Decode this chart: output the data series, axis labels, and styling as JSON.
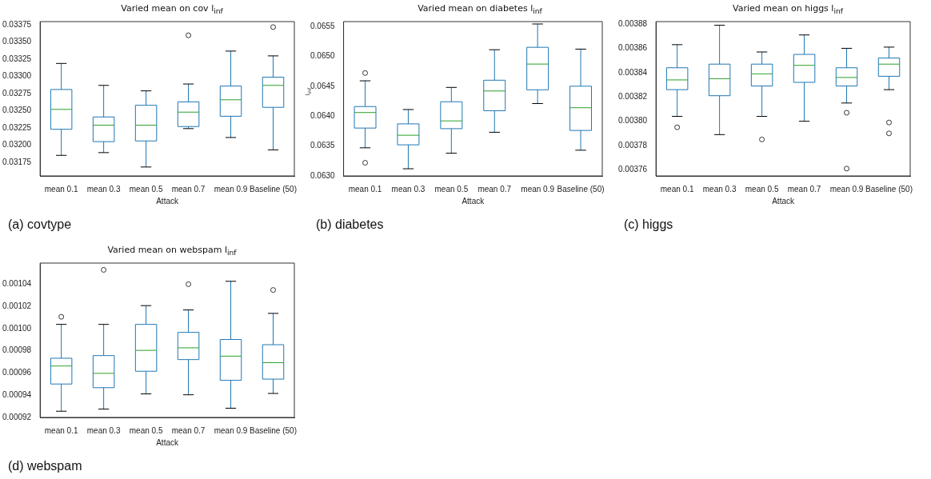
{
  "chart_data": [
    {
      "type": "box",
      "title": "Varied mean on cov l$_{inf}$",
      "xlabel": "Attack",
      "color": "#1f77b4",
      "categories": [
        "mean 0.1",
        "mean 0.3",
        "mean 0.5",
        "mean 0.7",
        "mean 0.9",
        "Baseline (50)"
      ],
      "boxes": [
        {
          "low": 0.03185,
          "q1": 0.03223,
          "median": 0.03252,
          "q3": 0.03281,
          "high": 0.03319
        },
        {
          "low": 0.03189,
          "q1": 0.03205,
          "median": 0.03229,
          "q3": 0.03241,
          "high": 0.03287
        },
        {
          "low": 0.03168,
          "q1": 0.03206,
          "median": 0.03229,
          "q3": 0.03258,
          "high": 0.03279
        },
        {
          "low": 0.03224,
          "q1": 0.03227,
          "median": 0.03248,
          "q3": 0.03263,
          "high": 0.03289,
          "outliers": [
            0.0336
          ]
        },
        {
          "low": 0.03211,
          "q1": 0.03242,
          "median": 0.03266,
          "q3": 0.03286,
          "high": 0.03337
        },
        {
          "low": 0.03193,
          "q1": 0.03255,
          "median": 0.03287,
          "q3": 0.03299,
          "high": 0.0333,
          "outliers": [
            0.03372
          ]
        }
      ],
      "ylim": [
        0.03155,
        0.0338
      ],
      "yticks": [
        0.03175,
        {
          "value": 0.032,
          "label": "0.03200"
        },
        0.03225,
        {
          "value": 0.0325,
          "label": "0.03250"
        },
        0.03275,
        {
          "value": 0.033,
          "label": "0.03300"
        },
        0.03325,
        {
          "value": 0.0335,
          "label": "0.03350"
        },
        0.03375
      ],
      "grid": false,
      "legend": false,
      "annotations": [
        "(a) covtype"
      ]
    },
    {
      "type": "box",
      "title": "Varied mean on diabetes l$_{inf}$",
      "xlabel": "Attack",
      "ylabel": "l$_{inf}$",
      "color": "#1f77b4",
      "categories": [
        "mean 0.1",
        "mean 0.3",
        "mean 0.5",
        "mean 0.7",
        "mean 0.9",
        "Baseline (50)"
      ],
      "boxes": [
        {
          "low": 0.06347,
          "q1": 0.0638,
          "median": 0.06406,
          "q3": 0.06416,
          "high": 0.06459,
          "outliers": [
            0.06472,
            0.06322
          ]
        },
        {
          "low": 0.06312,
          "q1": 0.06352,
          "median": 0.06368,
          "q3": 0.06387,
          "high": 0.06411
        },
        {
          "low": 0.06338,
          "q1": 0.06379,
          "median": 0.06392,
          "q3": 0.06424,
          "high": 0.06448
        },
        {
          "low": 0.06373,
          "q1": 0.06409,
          "median": 0.06442,
          "q3": 0.0646,
          "high": 0.06511
        },
        {
          "low": 0.06421,
          "q1": 0.06444,
          "median": 0.06487,
          "q3": 0.06515,
          "high": 0.06554
        },
        {
          "low": 0.06343,
          "q1": 0.06376,
          "median": 0.06414,
          "q3": 0.0645,
          "high": 0.06512
        }
      ],
      "ylim": [
        0.063,
        0.06558
      ],
      "yticks": [
        {
          "value": 0.063,
          "label": "0.0630"
        },
        0.0635,
        {
          "value": 0.064,
          "label": "0.0640"
        },
        0.0645,
        {
          "value": 0.065,
          "label": "0.0650"
        },
        0.0655
      ],
      "grid": false,
      "legend": false,
      "annotations": [
        "(b) diabetes"
      ]
    },
    {
      "type": "box",
      "title": "Varied mean on higgs l$_{inf}$",
      "xlabel": "Attack",
      "color": "#1f77b4",
      "categories": [
        "mean 0.1",
        "mean 0.3",
        "mean 0.5",
        "mean 0.7",
        "mean 0.9",
        "Baseline (50)"
      ],
      "boxes": [
        {
          "low": 0.003804,
          "q1": 0.003826,
          "median": 0.003834,
          "q3": 0.003844,
          "high": 0.003863,
          "outliers": [
            0.003795
          ]
        },
        {
          "low": 0.003789,
          "q1": 0.003821,
          "median": 0.003835,
          "q3": 0.003847,
          "high": 0.003879
        },
        {
          "low": 0.003804,
          "q1": 0.003829,
          "median": 0.003839,
          "q3": 0.003847,
          "high": 0.003857,
          "outliers": [
            0.003785
          ]
        },
        {
          "low": 0.0038,
          "q1": 0.003832,
          "median": 0.003846,
          "q3": 0.003855,
          "high": 0.003871
        },
        {
          "low": 0.003815,
          "q1": 0.003829,
          "median": 0.003836,
          "q3": 0.003844,
          "high": 0.00386,
          "outliers": [
            0.003807,
            0.003761
          ]
        },
        {
          "low": 0.003826,
          "q1": 0.003837,
          "median": 0.003847,
          "q3": 0.003852,
          "high": 0.003861,
          "outliers": [
            0.003799,
            0.00379
          ]
        }
      ],
      "ylim": [
        0.003755,
        0.003882
      ],
      "yticks": [
        0.00376,
        0.00378,
        {
          "value": 0.0038,
          "label": "0.00380"
        },
        0.00382,
        0.00384,
        0.00386,
        0.00388
      ],
      "grid": false,
      "legend": false,
      "annotations": [
        "(c) higgs"
      ]
    },
    {
      "type": "box",
      "title": "Varied mean on webspam l$_{inf}$",
      "xlabel": "Attack",
      "color": "#1f77b4",
      "categories": [
        "mean 0.1",
        "mean 0.3",
        "mean 0.5",
        "mean 0.7",
        "mean 0.9",
        "Baseline (50)"
      ],
      "boxes": [
        {
          "low": 0.0009256,
          "q1": 0.0009501,
          "median": 0.0009663,
          "q3": 0.0009733,
          "high": 0.0010038,
          "outliers": [
            0.0010106
          ]
        },
        {
          "low": 0.0009275,
          "q1": 0.0009468,
          "median": 0.0009597,
          "q3": 0.0009757,
          "high": 0.0010038,
          "outliers": [
            0.0010529
          ]
        },
        {
          "low": 0.0009412,
          "q1": 0.0009616,
          "median": 0.0009804,
          "q3": 0.0010038,
          "high": 0.0010207
        },
        {
          "low": 0.0009404,
          "q1": 0.0009721,
          "median": 0.0009827,
          "q3": 0.0009966,
          "high": 0.0010168,
          "outliers": [
            0.00104
          ]
        },
        {
          "low": 0.0009283,
          "q1": 0.0009534,
          "median": 0.0009752,
          "q3": 0.0009902,
          "high": 0.0010426
        },
        {
          "low": 0.0009416,
          "q1": 0.0009545,
          "median": 0.0009693,
          "q3": 0.0009855,
          "high": 0.0010137,
          "outliers": [
            0.0010348
          ]
        }
      ],
      "ylim": [
        0.00092,
        0.001059
      ],
      "yticks": [
        0.00092,
        0.00094,
        0.00096,
        0.00098,
        {
          "value": 0.001,
          "label": "0.00100"
        },
        0.00102,
        0.00104
      ],
      "grid": false,
      "legend": false,
      "annotations": [
        "(d) webspam"
      ]
    }
  ]
}
